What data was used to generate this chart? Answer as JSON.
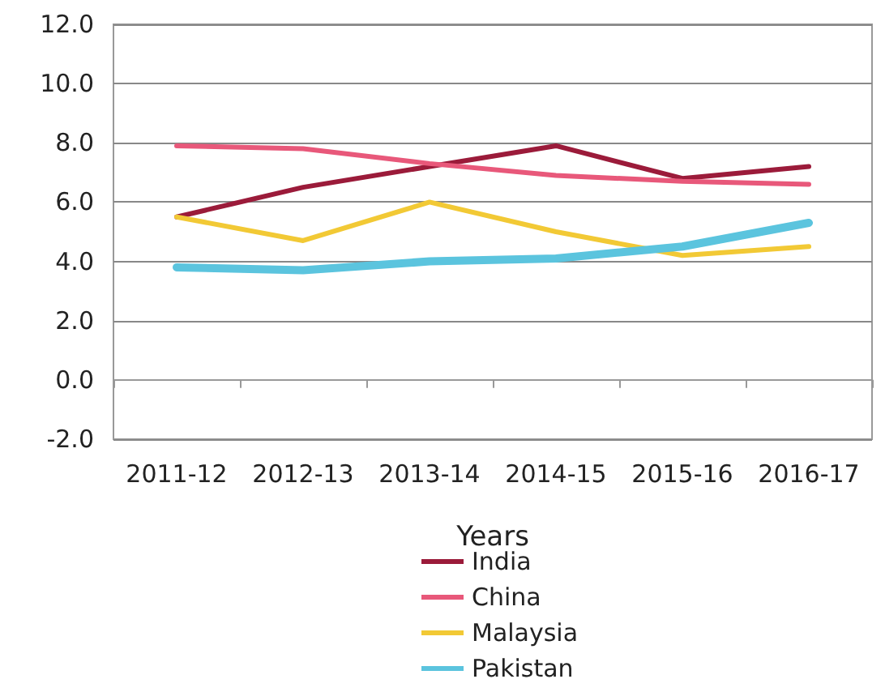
{
  "chart_data": {
    "type": "line",
    "xlabel": "Years",
    "categories": [
      "2011-12",
      "2012-13",
      "2013-14",
      "2014-15",
      "2015-16",
      "2016-17"
    ],
    "series": [
      {
        "name": "India",
        "color": "#9b1b3a",
        "values": [
          5.5,
          6.5,
          7.2,
          7.9,
          6.8,
          7.2
        ]
      },
      {
        "name": "China",
        "color": "#e8587a",
        "values": [
          7.9,
          7.8,
          7.3,
          6.9,
          6.7,
          6.6
        ]
      },
      {
        "name": "Malaysia",
        "color": "#f2c935",
        "values": [
          5.5,
          4.7,
          6.0,
          5.0,
          4.2,
          4.5
        ]
      },
      {
        "name": "Pakistan",
        "color": "#5bc4de",
        "values": [
          3.8,
          3.7,
          4.0,
          4.1,
          4.5,
          5.3
        ]
      }
    ],
    "ylim": [
      -2,
      12
    ],
    "yticks": [
      {
        "value": -2,
        "label": "-2.0"
      },
      {
        "value": 0,
        "label": "0.0"
      },
      {
        "value": 2,
        "label": "2.0"
      },
      {
        "value": 4,
        "label": "4.0"
      },
      {
        "value": 6,
        "label": "6.0"
      },
      {
        "value": 8,
        "label": "8.0"
      },
      {
        "value": 10,
        "label": "10.0"
      },
      {
        "value": 12,
        "label": "12.0"
      }
    ],
    "grid": "y",
    "legend": "bottom",
    "marker": "none",
    "line_style": "solid"
  }
}
